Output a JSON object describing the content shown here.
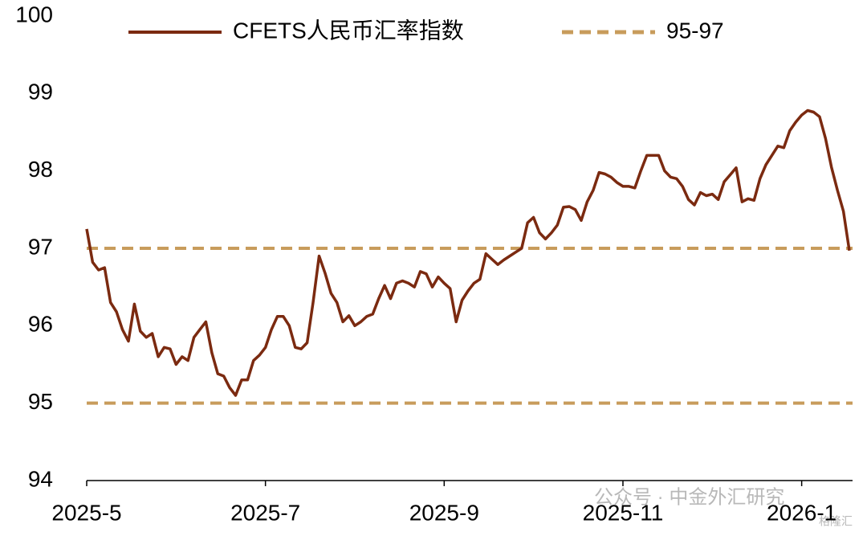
{
  "chart_data": {
    "type": "line",
    "categories": [
      "2025-5",
      null,
      null,
      null,
      null,
      null,
      null,
      null,
      null,
      null,
      null,
      null,
      null,
      null,
      null,
      null,
      null,
      null,
      null,
      null,
      null,
      null,
      null,
      null,
      null,
      null,
      null,
      null,
      null,
      null,
      "2025-7",
      null,
      null,
      null,
      null,
      null,
      null,
      null,
      null,
      null,
      null,
      null,
      null,
      null,
      null,
      null,
      null,
      null,
      null,
      null,
      null,
      null,
      null,
      null,
      null,
      null,
      null,
      null,
      null,
      null,
      "2025-9",
      null,
      null,
      null,
      null,
      null,
      null,
      null,
      null,
      null,
      null,
      null,
      null,
      null,
      null,
      null,
      null,
      null,
      null,
      null,
      null,
      null,
      null,
      null,
      null,
      null,
      null,
      null,
      null,
      null,
      "2025-11",
      null,
      null,
      null,
      null,
      null,
      null,
      null,
      null,
      null,
      null,
      null,
      null,
      null,
      null,
      null,
      null,
      null,
      null,
      null,
      null,
      null,
      null,
      null,
      null,
      null,
      null,
      null,
      null,
      null,
      "2026-1",
      null,
      null,
      null,
      null,
      null,
      null,
      null,
      null
    ],
    "series": [
      {
        "name": "CFETS人民币汇率指数",
        "color": "#7b2a10",
        "values": [
          97.25,
          96.82,
          96.72,
          96.75,
          96.3,
          96.18,
          95.95,
          95.8,
          96.28,
          95.93,
          95.85,
          95.9,
          95.6,
          95.72,
          95.7,
          95.5,
          95.6,
          95.55,
          95.85,
          95.95,
          96.05,
          95.65,
          95.38,
          95.35,
          95.2,
          95.1,
          95.3,
          95.3,
          95.55,
          95.62,
          95.72,
          95.95,
          96.12,
          96.12,
          96.0,
          95.72,
          95.7,
          95.78,
          96.3,
          96.9,
          96.68,
          96.42,
          96.3,
          96.05,
          96.13,
          96.0,
          96.05,
          96.12,
          96.15,
          96.35,
          96.52,
          96.35,
          96.55,
          96.58,
          96.55,
          96.5,
          96.7,
          96.67,
          96.5,
          96.63,
          96.55,
          96.48,
          96.05,
          96.33,
          96.45,
          96.55,
          96.6,
          96.93,
          96.86,
          96.79,
          96.85,
          96.9,
          96.95,
          97.0,
          97.33,
          97.4,
          97.2,
          97.12,
          97.2,
          97.3,
          97.53,
          97.54,
          97.5,
          97.36,
          97.6,
          97.75,
          97.98,
          97.96,
          97.92,
          97.85,
          97.8,
          97.8,
          97.78,
          98.0,
          98.2,
          98.2,
          98.2,
          98.0,
          97.92,
          97.9,
          97.8,
          97.63,
          97.56,
          97.72,
          97.68,
          97.7,
          97.63,
          97.86,
          97.95,
          98.04,
          97.6,
          97.64,
          97.62,
          97.9,
          98.08,
          98.2,
          98.32,
          98.3,
          98.52,
          98.63,
          98.72,
          98.78,
          98.76,
          98.7,
          98.42,
          98.05,
          97.75,
          97.48,
          96.97
        ]
      }
    ],
    "reference_lines": {
      "name": "95-97",
      "color": "#c89c5c",
      "values": [
        95,
        97
      ]
    },
    "ylim": [
      94,
      100
    ],
    "yticks": [
      94,
      95,
      96,
      97,
      98,
      99,
      100
    ],
    "grid": false,
    "annotations": [
      "公众号 · 中金外汇研究",
      "格隆汇"
    ]
  }
}
